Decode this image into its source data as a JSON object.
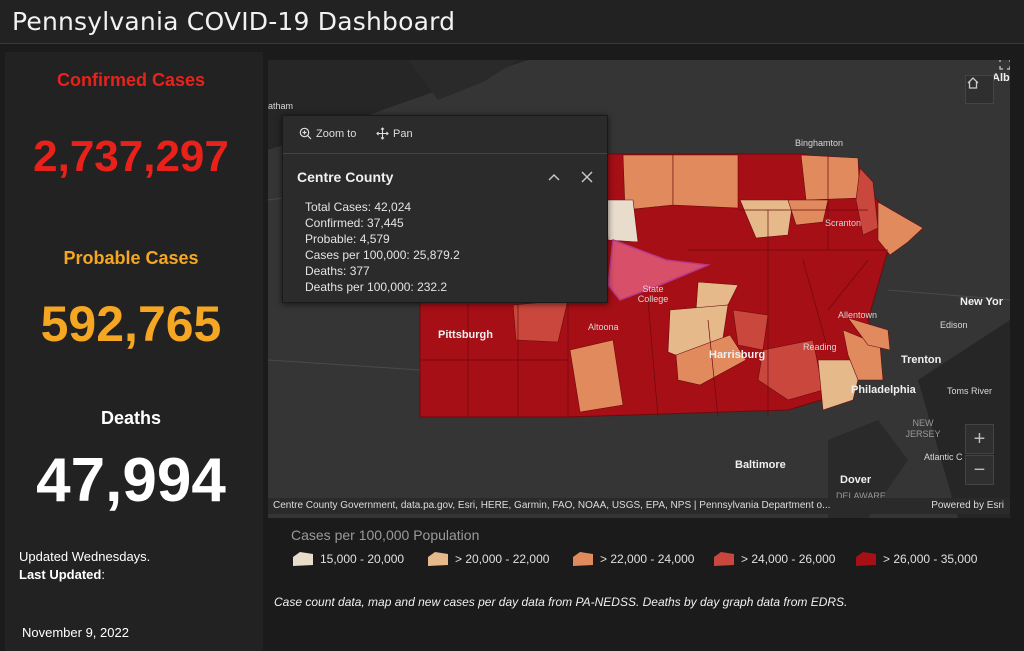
{
  "header": {
    "title": "Pennsylvania COVID-19 Dashboard"
  },
  "stats": {
    "confirmed": {
      "label": "Confirmed Cases",
      "value": "2,737,297",
      "color": "#e8221b"
    },
    "probable": {
      "label": "Probable Cases",
      "value": "592,765",
      "color": "#f5a623"
    },
    "deaths": {
      "label": "Deaths",
      "value": "47,994",
      "color": "#ffffff"
    }
  },
  "update": {
    "note": "Updated Wednesdays.",
    "last_updated_label": "Last Updated",
    "last_updated_suffix": ":",
    "date": "November 9, 2022"
  },
  "map": {
    "labels": {
      "pittsburgh": "Pittsburgh",
      "altoona": "Altoona",
      "harrisburg": "Harrisburg",
      "reading": "Reading",
      "allentown": "Allentown",
      "scranton": "Scranton",
      "binghamton": "Binghamton",
      "state_college": "State College",
      "philadelphia": "Philadelphia",
      "trenton": "Trenton",
      "new_york": "New Yor",
      "edison": "Edison",
      "toms_river": "Toms River",
      "new_jersey": "NEW JERSEY",
      "atlantic": "Atlantic C",
      "baltimore": "Baltimore",
      "dover": "Dover",
      "delaware": "DELAWARE",
      "albany": "Alb",
      "chatham": "atham"
    },
    "icons": [
      "home-icon",
      "expand-icon",
      "zoom-in-icon",
      "zoom-out-icon"
    ]
  },
  "popup": {
    "zoom_to": "Zoom to",
    "pan": "Pan",
    "title": "Centre County",
    "lines": [
      "Total Cases: 42,024",
      "Confirmed: 37,445",
      "Probable: 4,579",
      "Cases per 100,000: 25,879.2",
      "Deaths: 377",
      "Deaths per 100,000: 232.2"
    ]
  },
  "attribution": {
    "text": "Centre County Government, data.pa.gov, Esri, HERE, Garmin, FAO, NOAA, USGS, EPA, NPS | Pennsylvania Department o...",
    "powered": "Powered by Esri"
  },
  "legend": {
    "title": "Cases per 100,000 Population",
    "items": [
      {
        "label": "15,000 - 20,000",
        "color": "#e8dccd"
      },
      {
        "label": "> 20,000 - 22,000",
        "color": "#e6b98a"
      },
      {
        "label": "> 22,000 - 24,000",
        "color": "#e08a5e"
      },
      {
        "label": "> 24,000 - 26,000",
        "color": "#c9473c"
      },
      {
        "label": "> 26,000 - 35,000",
        "color": "#a50f15"
      }
    ]
  },
  "source_note": "Case count data, map and new cases per day data from PA-NEDSS.  Deaths by day graph data from EDRS."
}
